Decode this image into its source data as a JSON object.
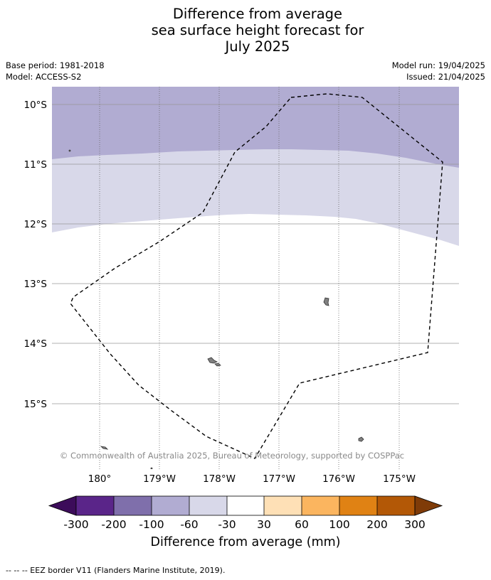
{
  "header": {
    "title_line1": "Difference from average",
    "title_line2": "sea surface height forecast for",
    "title_line3": "July 2025",
    "base_period": "Base period: 1981-2018",
    "model": "Model: ACCESS-S2",
    "model_run": "Model run: 19/04/2025",
    "issued": "Issued: 21/04/2025"
  },
  "map": {
    "lat_labels": [
      "10°S",
      "11°S",
      "12°S",
      "13°S",
      "14°S",
      "15°S"
    ],
    "lon_labels": [
      "180°",
      "179°W",
      "178°W",
      "177°W",
      "176°W",
      "175°W"
    ],
    "copyright": "© Commonwealth of Australia 2025, Bureau of Meteorology, supported by COSPPac",
    "colors": {
      "band_-100_-60": "#b1acd2",
      "band_-60_-30": "#d8d8e9",
      "band_-30_30": "#ffffff",
      "land": "#808080",
      "grid": "#999999"
    }
  },
  "colorbar": {
    "ticks": [
      "-300",
      "-200",
      "-100",
      "-60",
      "-30",
      "30",
      "60",
      "100",
      "200",
      "300"
    ],
    "colors": [
      "#3c0c5a",
      "#5a2589",
      "#7f6fab",
      "#b1acd2",
      "#d8d8e9",
      "#ffffff",
      "#fee0b6",
      "#fbb55f",
      "#e08214",
      "#b35806",
      "#7f3b08"
    ],
    "label": "Difference from average (mm)"
  },
  "footnote": "--  --  -- EEZ border V11 (Flanders Marine Institute, 2019)."
}
